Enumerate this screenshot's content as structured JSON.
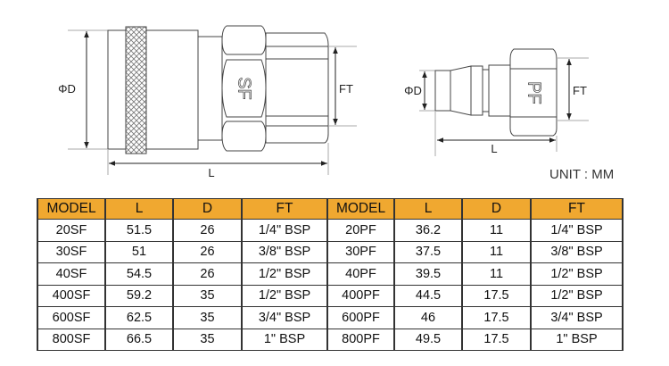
{
  "drawing": {
    "socket": {
      "mark": "SF",
      "dim_d": "ΦD",
      "dim_ft": "FT",
      "dim_l": "L"
    },
    "plug": {
      "mark": "PF",
      "dim_d": "ΦD",
      "dim_ft": "FT",
      "dim_l": "L"
    },
    "unit": "UNIT : MM"
  },
  "table": {
    "header_color": "#F0A830",
    "columns": [
      "MODEL",
      "L",
      "D",
      "FT",
      "MODEL",
      "L",
      "D",
      "FT"
    ],
    "rows": [
      [
        "20SF",
        "51.5",
        "26",
        "1/4\" BSP",
        "20PF",
        "36.2",
        "11",
        "1/4\" BSP"
      ],
      [
        "30SF",
        "51",
        "26",
        "3/8\" BSP",
        "30PF",
        "37.5",
        "11",
        "3/8\" BSP"
      ],
      [
        "40SF",
        "54.5",
        "26",
        "1/2\" BSP",
        "40PF",
        "39.5",
        "11",
        "1/2\" BSP"
      ],
      [
        "400SF",
        "59.2",
        "35",
        "1/2\" BSP",
        "400PF",
        "44.5",
        "17.5",
        "1/2\" BSP"
      ],
      [
        "600SF",
        "62.5",
        "35",
        "3/4\" BSP",
        "600PF",
        "46",
        "17.5",
        "3/4\" BSP"
      ],
      [
        "800SF",
        "66.5",
        "35",
        "1\" BSP",
        "800PF",
        "49.5",
        "17.5",
        "1\" BSP"
      ]
    ]
  }
}
